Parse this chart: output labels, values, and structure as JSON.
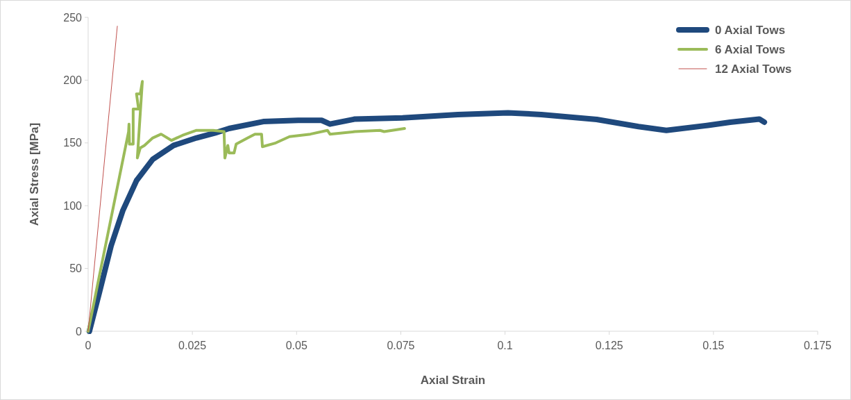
{
  "chart_data": {
    "type": "line",
    "xlabel": "Axial Strain",
    "ylabel": "Axial Stress [MPa]",
    "xlim": [
      0,
      0.175
    ],
    "xticks": [
      0,
      0.025,
      0.05,
      0.075,
      0.1,
      0.125,
      0.15,
      0.175
    ],
    "ylim": [
      0,
      250
    ],
    "yticks": [
      0,
      50,
      100,
      150,
      200,
      250
    ],
    "grid": false,
    "legend": "top right",
    "marker": "none",
    "line_style": "solid",
    "series": [
      {
        "name": "0 Axial Tows",
        "color": "#1f497d",
        "x": [
          0.0003,
          0.0027,
          0.0055,
          0.0083,
          0.0116,
          0.0155,
          0.0205,
          0.026,
          0.0305,
          0.0338,
          0.042,
          0.0504,
          0.056,
          0.058,
          0.064,
          0.0754,
          0.0887,
          0.1007,
          0.1087,
          0.122,
          0.132,
          0.1387,
          0.1487,
          0.154,
          0.161,
          0.1622
        ],
        "values": [
          0,
          31,
          68,
          96,
          120,
          137,
          148,
          154,
          158,
          161.5,
          167,
          168,
          168,
          165,
          169,
          170,
          172.6,
          174,
          172.6,
          168.7,
          163,
          160,
          164,
          166.5,
          169,
          166.5
        ]
      },
      {
        "name": "6 Axial Tows",
        "color": "#9bbb59",
        "x": [
          0,
          0.0097,
          0.0098,
          0.0099,
          0.0108,
          0.0108,
          0.0121,
          0.0116,
          0.0125,
          0.0125,
          0.013,
          0.0118,
          0.0125,
          0.0135,
          0.0155,
          0.0175,
          0.02,
          0.0226,
          0.026,
          0.03,
          0.0326,
          0.0328,
          0.0335,
          0.0338,
          0.035,
          0.0355,
          0.0383,
          0.04,
          0.0416,
          0.0418,
          0.045,
          0.0483,
          0.0533,
          0.0574,
          0.058,
          0.064,
          0.07,
          0.071,
          0.0759
        ],
        "values": [
          0,
          159,
          165,
          149,
          149,
          177,
          177,
          189,
          189,
          189,
          199,
          138,
          146,
          148,
          154,
          157,
          152,
          156,
          160,
          160,
          159,
          138,
          148,
          142,
          142,
          149,
          154,
          157,
          157,
          147,
          150,
          155,
          157,
          160,
          157,
          159,
          160,
          159,
          161.5
        ]
      },
      {
        "name": "12 Axial Tows",
        "color": "#c0504d",
        "x": [
          0,
          0.007
        ],
        "values": [
          0,
          243
        ]
      }
    ]
  }
}
